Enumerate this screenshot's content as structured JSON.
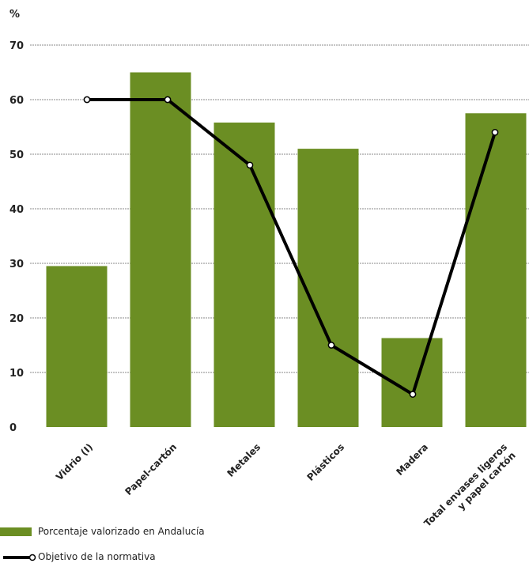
{
  "chart_data": {
    "type": "bar",
    "unit_label": "%",
    "ylim": [
      0,
      70
    ],
    "yticks": [
      0,
      10,
      20,
      30,
      40,
      50,
      60,
      70
    ],
    "grid": true,
    "categories": [
      [
        "Vidrio (I)"
      ],
      [
        "Papel-cartón"
      ],
      [
        "Metales"
      ],
      [
        "Plásticos"
      ],
      [
        "Madera"
      ],
      [
        "Total envases ligeros",
        "y papel cartón"
      ]
    ],
    "series": [
      {
        "name": "Porcentaje valorizado en Andalucía",
        "type": "bar",
        "color": "#6b8e23",
        "values": [
          29.5,
          65,
          55.8,
          51,
          16.3,
          57.5
        ]
      },
      {
        "name": "Objetivo de la normativa",
        "type": "line",
        "color": "#000000",
        "values": [
          60,
          60,
          48,
          15,
          6,
          54
        ]
      }
    ],
    "legend_position": "bottom-left"
  }
}
